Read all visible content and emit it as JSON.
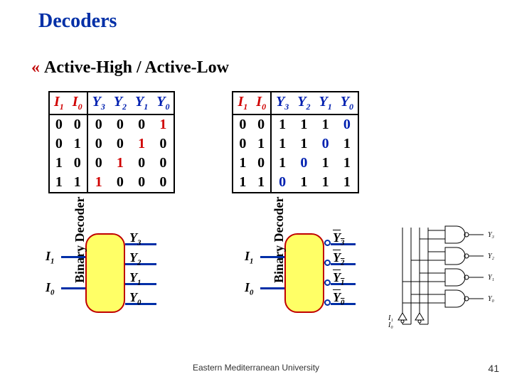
{
  "title": "Decoders",
  "subtitle": "Active-High / Active-Low",
  "star": "«",
  "truth_table": {
    "headers_i": [
      "I",
      "I"
    ],
    "headers_i_sub": [
      "1",
      "0"
    ],
    "headers_y": [
      "Y",
      "Y",
      "Y",
      "Y"
    ],
    "headers_y_sub": [
      "3",
      "2",
      "1",
      "0"
    ],
    "inputs": [
      [
        "0",
        "0"
      ],
      [
        "0",
        "1"
      ],
      [
        "1",
        "0"
      ],
      [
        "1",
        "1"
      ]
    ],
    "active_high": [
      [
        "0",
        "0",
        "0",
        "1"
      ],
      [
        "0",
        "0",
        "1",
        "0"
      ],
      [
        "0",
        "1",
        "0",
        "0"
      ],
      [
        "1",
        "0",
        "0",
        "0"
      ]
    ],
    "active_low": [
      [
        "1",
        "1",
        "1",
        "0"
      ],
      [
        "1",
        "1",
        "0",
        "1"
      ],
      [
        "1",
        "0",
        "1",
        "1"
      ],
      [
        "0",
        "1",
        "1",
        "1"
      ]
    ],
    "high_hilite_col_by_row": [
      3,
      2,
      1,
      0
    ],
    "low_hilite_col_by_row": [
      3,
      2,
      1,
      0
    ],
    "colors": {
      "hi_accent": "#d00000",
      "lo_accent": "#0020b0",
      "header_i": "#d00000",
      "header_y": "#0020b0"
    }
  },
  "decoder": {
    "label": "Binary\nDecoder",
    "inputs": [
      {
        "name": "I",
        "sub": "1"
      },
      {
        "name": "I",
        "sub": "0"
      }
    ],
    "outputs": [
      {
        "name": "Y",
        "sub": "3"
      },
      {
        "name": "Y",
        "sub": "2"
      },
      {
        "name": "Y",
        "sub": "1"
      },
      {
        "name": "Y",
        "sub": "0"
      }
    ]
  },
  "circuit": {
    "gate_out_labels": [
      "Y₃",
      "Y₂",
      "Y₁",
      "Y₀"
    ],
    "input_labels": [
      "I₁",
      "I₀"
    ]
  },
  "footer": "Eastern Mediterranean University",
  "page": "41"
}
